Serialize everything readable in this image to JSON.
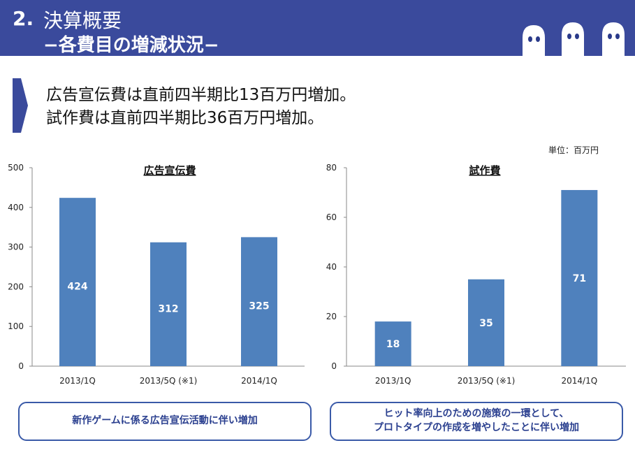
{
  "header": {
    "section_number": "2.",
    "title": "決算概要",
    "subtitle": "−各費目の増減状況−"
  },
  "lead": {
    "line1": "広告宣伝費は直前四半期比13百万円増加。",
    "line2": "試作費は直前四半期比36百万円増加。"
  },
  "unit_label": "単位：百万円",
  "colors": {
    "header_bg": "#3a4a9c",
    "bar": "#4f81bd",
    "note_border": "#3a5aa8",
    "note_text": "#2a3f8f"
  },
  "chart_data": [
    {
      "type": "bar",
      "title": "広告宣伝費",
      "categories": [
        "2013/1Q",
        "2013/5Q  (※1)",
        "2014/1Q"
      ],
      "values": [
        424,
        312,
        325
      ],
      "data_labels": [
        "424",
        "312",
        "325"
      ],
      "ylim": [
        0,
        500
      ],
      "yticks": [
        0,
        100,
        200,
        300,
        400,
        500
      ],
      "grid": false,
      "legend": "none"
    },
    {
      "type": "bar",
      "title": "試作費",
      "categories": [
        "2013/1Q",
        "2013/5Q  (※1)",
        "2014/1Q"
      ],
      "values": [
        18,
        35,
        71
      ],
      "data_labels": [
        "18",
        "35",
        "71"
      ],
      "ylim": [
        0,
        80
      ],
      "yticks": [
        0,
        20,
        40,
        60,
        80
      ],
      "grid": false,
      "legend": "none"
    }
  ],
  "notes": {
    "left": "新作ゲームに係る広告宣伝活動に伴い増加",
    "right_line1": "ヒット率向上のための施策の一環として、",
    "right_line2": "プロトタイプの作成を増やしたことに伴い増加"
  }
}
